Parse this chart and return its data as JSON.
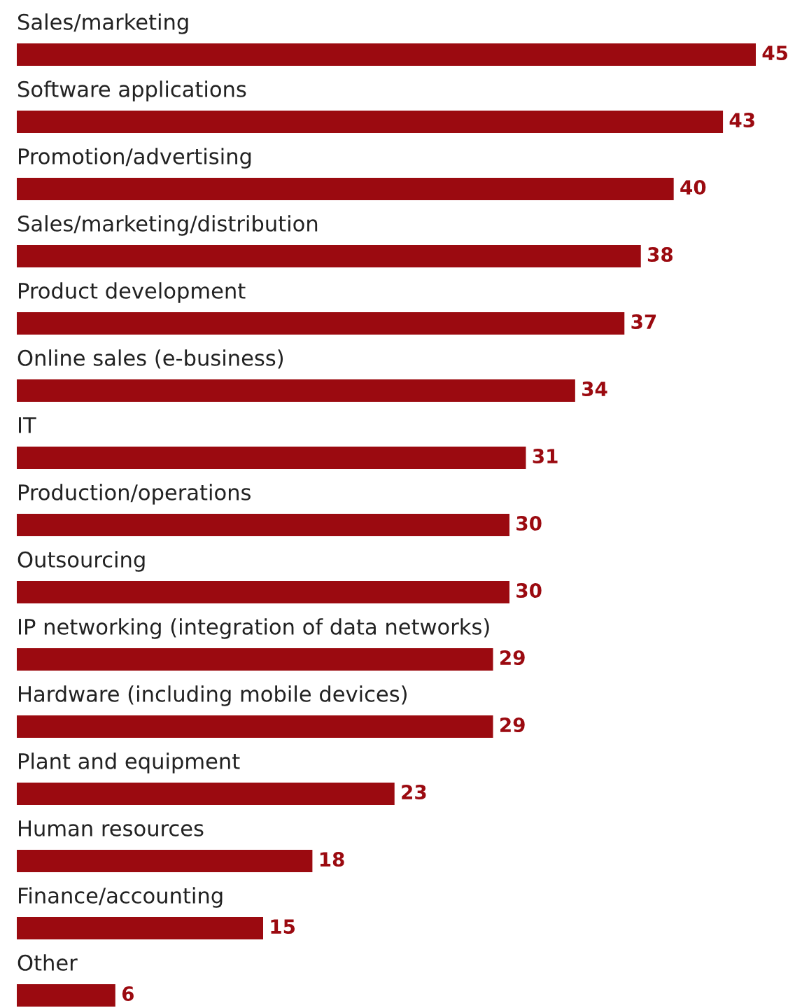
{
  "chart_data": {
    "type": "bar",
    "orientation": "horizontal",
    "data_labels": true,
    "color": "#9b0a10",
    "categories": [
      "Sales/marketing",
      "Software applications",
      "Promotion/advertising",
      "Sales/marketing/distribution",
      "Product development",
      "Online sales (e-business)",
      "IT",
      "Production/operations",
      "Outsourcing",
      "IP networking (integration of data networks)",
      "Hardware (including mobile devices)",
      "Plant and equipment",
      "Human resources",
      "Finance/accounting",
      "Other"
    ],
    "values": [
      45,
      43,
      40,
      38,
      37,
      34,
      31,
      30,
      30,
      29,
      29,
      23,
      18,
      15,
      6
    ]
  }
}
